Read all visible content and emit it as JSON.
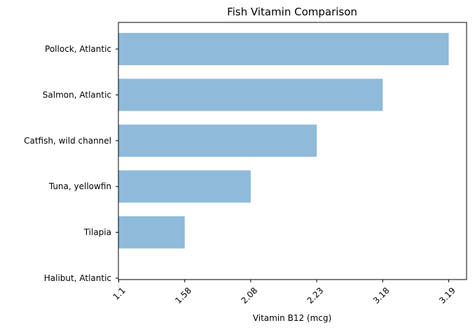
{
  "chart_data": {
    "type": "bar",
    "orientation": "horizontal",
    "title": "Fish Vitamin Comparison",
    "xlabel": "Vitamin B12 (mcg)",
    "ylabel": "",
    "categories": [
      "Pollock, Atlantic",
      "Salmon, Atlantic",
      "Catfish, wild channel",
      "Tuna, yellowfin",
      "Tilapia",
      "Halibut, Atlantic"
    ],
    "values": [
      3.19,
      3.18,
      2.23,
      2.08,
      1.58,
      1.1
    ],
    "xticks": [
      "1.1",
      "1.58",
      "2.08",
      "2.23",
      "3.18",
      "3.19"
    ],
    "x_axis_is_categorical_rank": true,
    "bar_color": "#8fbad9",
    "grid": false,
    "legend": "none"
  }
}
